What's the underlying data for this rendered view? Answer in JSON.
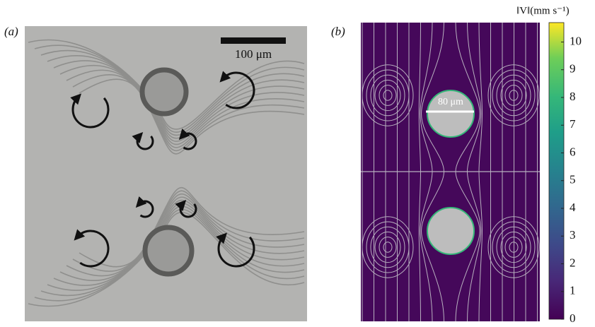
{
  "panel_a": {
    "label": "(a)",
    "scale_bar": "100 μm"
  },
  "panel_b": {
    "label": "(b)",
    "scale_bar": "80 μm",
    "colorbar": {
      "label": "‖V‖(mm s⁻¹)",
      "lim": [
        0,
        10.7
      ],
      "ticks": [
        0,
        1,
        2,
        3,
        4,
        5,
        6,
        7,
        8,
        9,
        10
      ]
    }
  }
}
